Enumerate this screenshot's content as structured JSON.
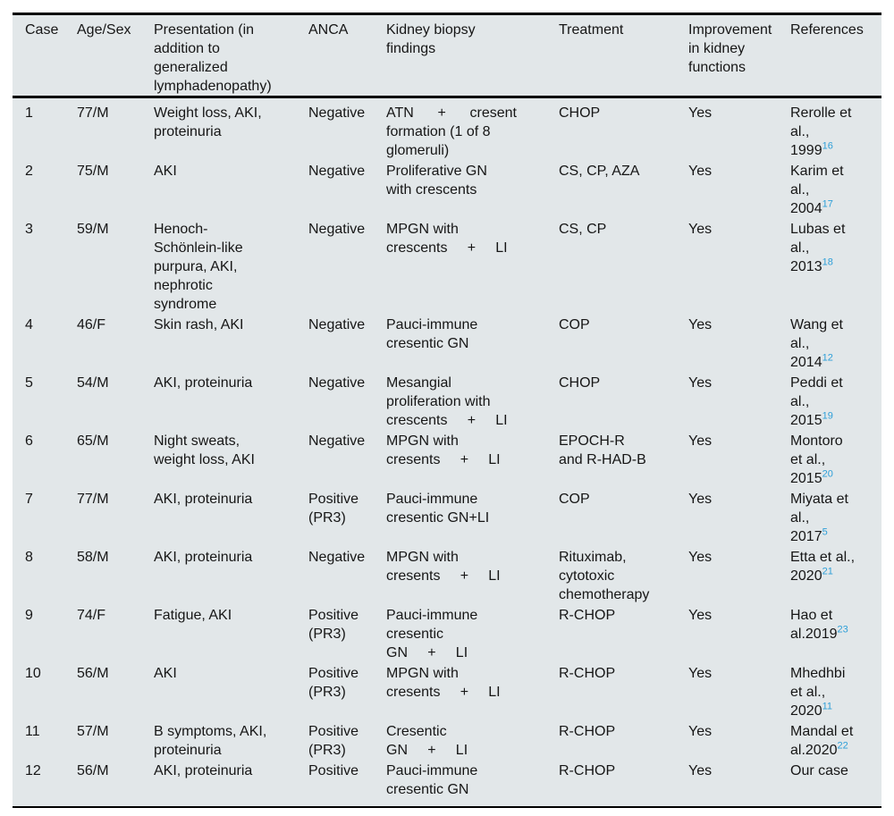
{
  "table": {
    "colors": {
      "background": "#e2e7e9",
      "text": "#161616",
      "border": "#000000",
      "citation": "#2e9fd8"
    },
    "columns": [
      {
        "key": "case",
        "label": "Case"
      },
      {
        "key": "age_sex",
        "label": "Age/Sex"
      },
      {
        "key": "presentation",
        "label": "Presentation (in\naddition to\ngeneralized\nlymphadenopathy)"
      },
      {
        "key": "anca",
        "label": "ANCA"
      },
      {
        "key": "biopsy",
        "label": "Kidney biopsy\nfindings"
      },
      {
        "key": "treatment",
        "label": "Treatment"
      },
      {
        "key": "improvement",
        "label": "Improvement\nin kidney\nfunctions"
      },
      {
        "key": "references",
        "label": "References"
      }
    ],
    "rows": [
      {
        "case": "1",
        "age_sex": "77/M",
        "presentation": "Weight loss, AKI,\nproteinuria",
        "anca": "Negative",
        "biopsy": "ATN      +      cresent\nformation (1 of 8\nglomeruli)",
        "treatment": "CHOP",
        "improvement": "Yes",
        "reference": {
          "text": "Rerolle et\nal.,\n1999",
          "sup": "16"
        }
      },
      {
        "case": "2",
        "age_sex": "75/M",
        "presentation": "AKI",
        "anca": "Negative",
        "biopsy": "Proliferative GN\nwith crescents",
        "treatment": "CS, CP, AZA",
        "improvement": "Yes",
        "reference": {
          "text": "Karim et\nal.,\n2004",
          "sup": "17"
        }
      },
      {
        "case": "3",
        "age_sex": "59/M",
        "presentation": "Henoch-\nSchönlein-like\npurpura, AKI,\nnephrotic\nsyndrome",
        "anca": "Negative",
        "biopsy": "MPGN with\ncrescents     +     LI",
        "treatment": "CS, CP",
        "improvement": "Yes",
        "reference": {
          "text": "Lubas et\nal.,\n2013",
          "sup": "18"
        }
      },
      {
        "case": "4",
        "age_sex": "46/F",
        "presentation": "Skin rash, AKI",
        "anca": "Negative",
        "biopsy": "Pauci-immune\ncresentic GN",
        "treatment": "COP",
        "improvement": "Yes",
        "reference": {
          "text": "Wang et\nal.,\n2014",
          "sup": "12"
        }
      },
      {
        "case": "5",
        "age_sex": "54/M",
        "presentation": "AKI, proteinuria",
        "anca": "Negative",
        "biopsy": "Mesangial\nproliferation with\ncrescents     +     LI",
        "treatment": "CHOP",
        "improvement": "Yes",
        "reference": {
          "text": "Peddi et\nal.,\n2015",
          "sup": "19"
        }
      },
      {
        "case": "6",
        "age_sex": "65/M",
        "presentation": "Night sweats,\nweight loss, AKI",
        "anca": "Negative",
        "biopsy": "MPGN with\ncresents     +     LI",
        "treatment": "EPOCH-R\nand R-HAD-B",
        "improvement": "Yes",
        "reference": {
          "text": "Montoro\net al.,\n2015",
          "sup": "20"
        }
      },
      {
        "case": "7",
        "age_sex": "77/M",
        "presentation": "AKI, proteinuria",
        "anca": "Positive\n(PR3)",
        "biopsy": "Pauci-immune\ncresentic GN+LI",
        "treatment": "COP",
        "improvement": "Yes",
        "reference": {
          "text": "Miyata et\nal.,\n2017",
          "sup": "5"
        }
      },
      {
        "case": "8",
        "age_sex": "58/M",
        "presentation": "AKI, proteinuria",
        "anca": "Negative",
        "biopsy": "MPGN with\ncresents     +     LI",
        "treatment": "Rituximab,\ncytotoxic\nchemotherapy",
        "improvement": "Yes",
        "reference": {
          "text": "Etta et al.,\n2020",
          "sup": "21"
        }
      },
      {
        "case": "9",
        "age_sex": "74/F",
        "presentation": "Fatigue, AKI",
        "anca": "Positive\n(PR3)",
        "biopsy": "Pauci-immune\ncresentic\nGN     +     LI",
        "treatment": "R-CHOP",
        "improvement": "Yes",
        "reference": {
          "text": "Hao et\nal.2019",
          "sup": "23"
        }
      },
      {
        "case": "10",
        "age_sex": "56/M",
        "presentation": "AKI",
        "anca": "Positive\n(PR3)",
        "biopsy": "MPGN with\ncresents     +     LI",
        "treatment": "R-CHOP",
        "improvement": "Yes",
        "reference": {
          "text": "Mhedhbi\net al.,\n2020",
          "sup": "11"
        }
      },
      {
        "case": "11",
        "age_sex": "57/M",
        "presentation": "B symptoms, AKI,\nproteinuria",
        "anca": "Positive\n(PR3)",
        "biopsy": "Cresentic\nGN     +     LI",
        "treatment": "R-CHOP",
        "improvement": "Yes",
        "reference": {
          "text": "Mandal et\nal.2020",
          "sup": "22"
        }
      },
      {
        "case": "12",
        "age_sex": "56/M",
        "presentation": "AKI, proteinuria",
        "anca": "Positive",
        "biopsy": "Pauci-immune\ncresentic GN",
        "treatment": "R-CHOP",
        "improvement": "Yes",
        "reference": {
          "text": "Our case",
          "sup": ""
        }
      }
    ]
  }
}
